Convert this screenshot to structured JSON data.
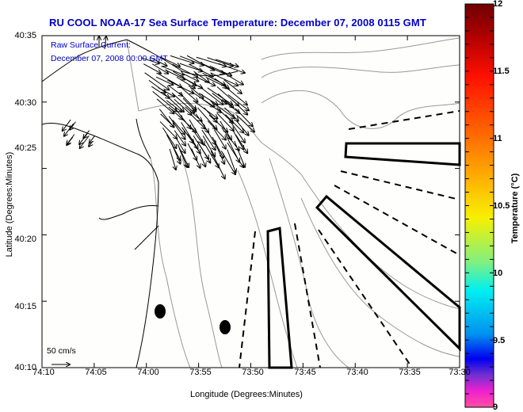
{
  "title": "RU COOL  NOAA-17  Sea Surface Temperature:  December 07, 2008 0115 GMT",
  "overlay": {
    "line1": "Raw Surface Current:",
    "line2": "December 07, 2008 00:00 GMT"
  },
  "scale": {
    "label": "50 cm/s"
  },
  "axes": {
    "xlabel": "Longitude (Degrees:Minutes)",
    "ylabel": "Latitude (Degrees:Minutes)",
    "xticks": [
      "74:10",
      "74:05",
      "74:00",
      "73:55",
      "73:50",
      "73:45",
      "73:40",
      "73:35",
      "73:30"
    ],
    "yticks": [
      "40:35",
      "40:30",
      "40:25",
      "40:20",
      "40:15",
      "40:10"
    ]
  },
  "colorbar": {
    "label": "Temperature (°C)",
    "min": 9,
    "max": 12,
    "ticks": [
      "12",
      "11.5",
      "11",
      "10.5",
      "10",
      "9.5",
      "9"
    ],
    "colors": {
      "c12": "#6e0000",
      "c1175": "#e80000",
      "c115": "#ff3000",
      "c1125": "#ff8800",
      "c11": "#ffd000",
      "c1085": "#f0f000",
      "c105": "#60f090",
      "c1025": "#00f0f0",
      "c10": "#00a8f0",
      "c975": "#0070f0",
      "c95": "#0000f0",
      "c935": "#2020e0",
      "c92": "#9020c0",
      "c9": "#ff40c0"
    }
  },
  "colors": {
    "background": "#fefefc",
    "title": "#0000c8",
    "coast": "#000000",
    "bathymetry": "#999999"
  },
  "map_features": {
    "current_vectors": "dense field of surface current arrows near harbor entrance (SE-directed)",
    "markers": [
      "buoy-marker",
      "buoy-marker"
    ],
    "shipping_lanes": "outlined traffic lanes with dashed separation zones"
  }
}
